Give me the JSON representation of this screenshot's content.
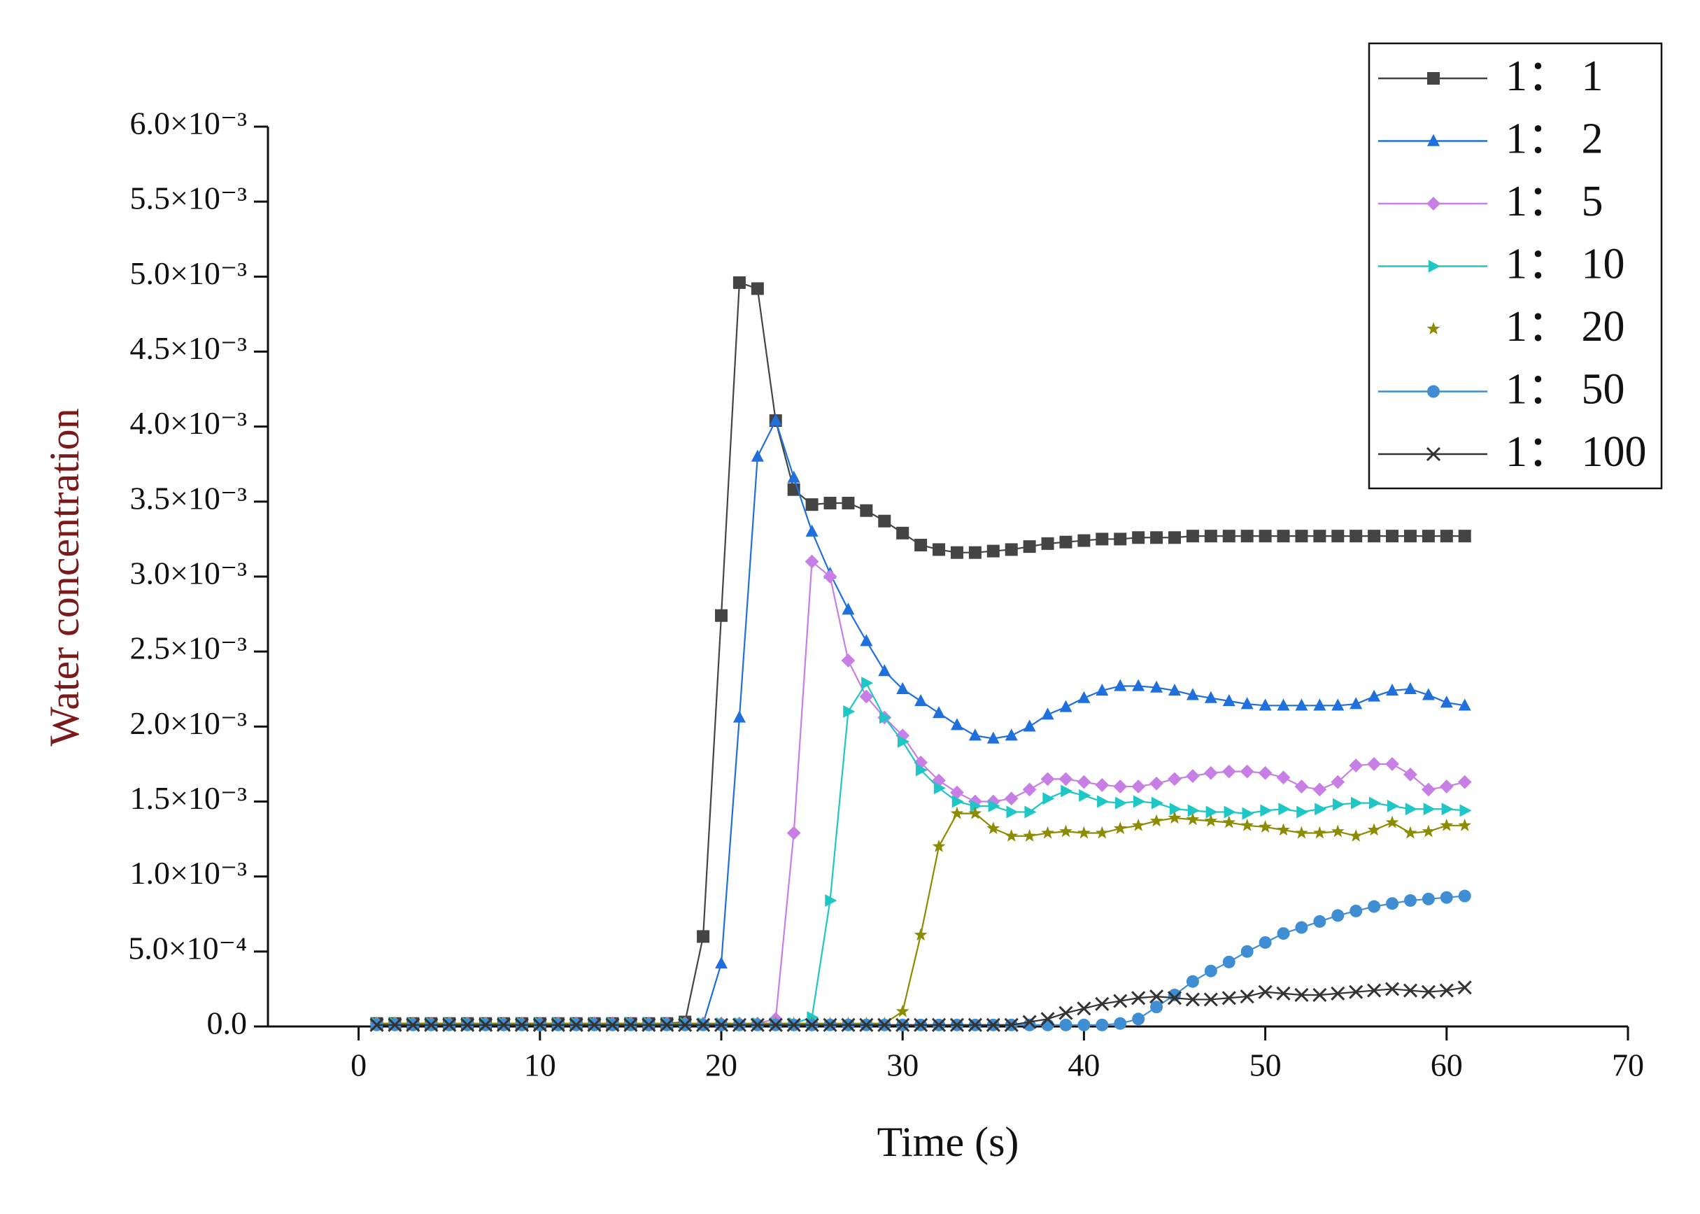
{
  "chart_data": {
    "type": "line",
    "x_label": "Time (s)",
    "y_label": "Water concentration",
    "xlim": [
      -5,
      70
    ],
    "xticks": [
      0,
      10,
      20,
      30,
      40,
      50,
      60,
      70
    ],
    "ylim": [
      0,
      0.006
    ],
    "yticks": [
      {
        "value": 0,
        "label": "0.0"
      },
      {
        "value": 0.0005,
        "label": "5.0×10⁻⁴"
      },
      {
        "value": 0.001,
        "label": "1.0×10⁻³"
      },
      {
        "value": 0.0015,
        "label": "1.5×10⁻³"
      },
      {
        "value": 0.002,
        "label": "2.0×10⁻³"
      },
      {
        "value": 0.0025,
        "label": "2.5×10⁻³"
      },
      {
        "value": 0.003,
        "label": "3.0×10⁻³"
      },
      {
        "value": 0.0035,
        "label": "3.5×10⁻³"
      },
      {
        "value": 0.004,
        "label": "4.0×10⁻³"
      },
      {
        "value": 0.0045,
        "label": "4.5×10⁻³"
      },
      {
        "value": 0.005,
        "label": "5.0×10⁻³"
      },
      {
        "value": 0.0055,
        "label": "5.5×10⁻³"
      },
      {
        "value": 0.006,
        "label": "6.0×10⁻³"
      }
    ],
    "legend": "upper right",
    "x": [
      1,
      2,
      3,
      4,
      5,
      6,
      7,
      8,
      9,
      10,
      11,
      12,
      13,
      14,
      15,
      16,
      17,
      18,
      19,
      20,
      21,
      22,
      23,
      24,
      25,
      26,
      27,
      28,
      29,
      30,
      31,
      32,
      33,
      34,
      35,
      36,
      37,
      38,
      39,
      40,
      41,
      42,
      43,
      44,
      45,
      46,
      47,
      48,
      49,
      50,
      51,
      52,
      53,
      54,
      55,
      56,
      57,
      58,
      59,
      60,
      61
    ],
    "series": [
      {
        "name": "1： 1",
        "color": "#444444",
        "marker": "square",
        "values": [
          2e-05,
          2e-05,
          2e-05,
          2e-05,
          2e-05,
          2e-05,
          2e-05,
          2e-05,
          2e-05,
          2e-05,
          2e-05,
          2e-05,
          2e-05,
          2e-05,
          2e-05,
          2e-05,
          2e-05,
          3e-05,
          0.0006,
          0.00274,
          0.00496,
          0.00492,
          0.00404,
          0.00358,
          0.00348,
          0.00349,
          0.00349,
          0.00344,
          0.00337,
          0.00329,
          0.00321,
          0.00318,
          0.00316,
          0.00316,
          0.00317,
          0.00318,
          0.0032,
          0.00322,
          0.00323,
          0.00324,
          0.00325,
          0.00325,
          0.00326,
          0.00326,
          0.00326,
          0.00327,
          0.00327,
          0.00327,
          0.00327,
          0.00327,
          0.00327,
          0.00327,
          0.00327,
          0.00327,
          0.00327,
          0.00327,
          0.00327,
          0.00327,
          0.00327,
          0.00327,
          0.00327
        ]
      },
      {
        "name": "1： 2",
        "color": "#1f6fdc",
        "marker": "triangle",
        "values": [
          2e-05,
          2e-05,
          2e-05,
          2e-05,
          2e-05,
          2e-05,
          2e-05,
          2e-05,
          2e-05,
          2e-05,
          2e-05,
          2e-05,
          2e-05,
          2e-05,
          2e-05,
          2e-05,
          2e-05,
          2e-05,
          2e-05,
          0.00042,
          0.00206,
          0.0038,
          0.00404,
          0.00366,
          0.0033,
          0.00302,
          0.00278,
          0.00257,
          0.00237,
          0.00225,
          0.00217,
          0.00209,
          0.00201,
          0.00194,
          0.00192,
          0.00194,
          0.002,
          0.00208,
          0.00213,
          0.00219,
          0.00224,
          0.00227,
          0.00227,
          0.00226,
          0.00224,
          0.00221,
          0.00219,
          0.00217,
          0.00215,
          0.00214,
          0.00214,
          0.00214,
          0.00214,
          0.00214,
          0.00215,
          0.0022,
          0.00224,
          0.00225,
          0.00221,
          0.00216,
          0.00214
        ]
      },
      {
        "name": "1： 5",
        "color": "#c77fe6",
        "marker": "diamond",
        "values": [
          2e-05,
          2e-05,
          2e-05,
          2e-05,
          2e-05,
          2e-05,
          2e-05,
          2e-05,
          2e-05,
          2e-05,
          2e-05,
          2e-05,
          2e-05,
          2e-05,
          2e-05,
          2e-05,
          2e-05,
          2e-05,
          2e-05,
          2e-05,
          2e-05,
          2e-05,
          5e-05,
          0.00129,
          0.0031,
          0.003,
          0.00244,
          0.0022,
          0.00206,
          0.00194,
          0.00176,
          0.00164,
          0.00156,
          0.0015,
          0.0015,
          0.00152,
          0.00158,
          0.00165,
          0.00165,
          0.00163,
          0.00161,
          0.0016,
          0.0016,
          0.00162,
          0.00165,
          0.00167,
          0.00169,
          0.0017,
          0.0017,
          0.00169,
          0.00166,
          0.0016,
          0.00158,
          0.00163,
          0.00174,
          0.00175,
          0.00175,
          0.00168,
          0.00158,
          0.0016,
          0.00163
        ]
      },
      {
        "name": "1： 10",
        "color": "#1ec6c6",
        "marker": "triangle-right",
        "values": [
          2e-05,
          2e-05,
          2e-05,
          2e-05,
          2e-05,
          2e-05,
          2e-05,
          2e-05,
          2e-05,
          2e-05,
          2e-05,
          2e-05,
          2e-05,
          2e-05,
          2e-05,
          2e-05,
          2e-05,
          2e-05,
          2e-05,
          2e-05,
          2e-05,
          2e-05,
          2e-05,
          2e-05,
          6e-05,
          0.00084,
          0.0021,
          0.00229,
          0.00206,
          0.0019,
          0.00171,
          0.00159,
          0.0015,
          0.00147,
          0.00147,
          0.00143,
          0.00143,
          0.00152,
          0.00157,
          0.00154,
          0.0015,
          0.00149,
          0.0015,
          0.00149,
          0.00145,
          0.00144,
          0.00143,
          0.00143,
          0.00142,
          0.00144,
          0.00145,
          0.00143,
          0.00145,
          0.00148,
          0.00149,
          0.00149,
          0.00147,
          0.00145,
          0.00145,
          0.00145,
          0.00144
        ]
      },
      {
        "name": "1： 20",
        "color": "#8c8c00",
        "marker": "star",
        "values": [
          2e-05,
          2e-05,
          2e-05,
          2e-05,
          2e-05,
          2e-05,
          2e-05,
          2e-05,
          2e-05,
          2e-05,
          2e-05,
          2e-05,
          2e-05,
          2e-05,
          2e-05,
          2e-05,
          2e-05,
          2e-05,
          2e-05,
          2e-05,
          2e-05,
          2e-05,
          2e-05,
          2e-05,
          2e-05,
          2e-05,
          2e-05,
          2e-05,
          2e-05,
          0.0001,
          0.00061,
          0.0012,
          0.00142,
          0.00142,
          0.00132,
          0.00127,
          0.00127,
          0.00129,
          0.0013,
          0.00129,
          0.00129,
          0.00132,
          0.00134,
          0.00137,
          0.00139,
          0.00138,
          0.00137,
          0.00136,
          0.00134,
          0.00133,
          0.00131,
          0.00129,
          0.00129,
          0.0013,
          0.00127,
          0.00131,
          0.00136,
          0.00129,
          0.0013,
          0.00134,
          0.00134
        ]
      },
      {
        "name": "1： 50",
        "color": "#3f8ed4",
        "marker": "circle",
        "values": [
          1e-05,
          1e-05,
          1e-05,
          1e-05,
          1e-05,
          1e-05,
          1e-05,
          1e-05,
          1e-05,
          1e-05,
          1e-05,
          1e-05,
          1e-05,
          1e-05,
          1e-05,
          1e-05,
          1e-05,
          1e-05,
          1e-05,
          1e-05,
          1e-05,
          1e-05,
          1e-05,
          1e-05,
          1e-05,
          1e-05,
          1e-05,
          1e-05,
          1e-05,
          1e-05,
          1e-05,
          1e-05,
          1e-05,
          1e-05,
          1e-05,
          1e-05,
          1e-05,
          1e-05,
          1e-05,
          1e-05,
          1e-05,
          2e-05,
          5e-05,
          0.00013,
          0.00021,
          0.0003,
          0.00037,
          0.00043,
          0.0005,
          0.00056,
          0.00062,
          0.00066,
          0.0007,
          0.00074,
          0.00077,
          0.0008,
          0.00082,
          0.00084,
          0.00085,
          0.00086,
          0.00087
        ]
      },
      {
        "name": "1： 100",
        "color": "#333333",
        "marker": "x",
        "values": [
          1e-05,
          1e-05,
          1e-05,
          1e-05,
          1e-05,
          1e-05,
          1e-05,
          1e-05,
          1e-05,
          1e-05,
          1e-05,
          1e-05,
          1e-05,
          1e-05,
          1e-05,
          1e-05,
          1e-05,
          1e-05,
          1e-05,
          1e-05,
          1e-05,
          1e-05,
          1e-05,
          1e-05,
          1e-05,
          1e-05,
          1e-05,
          1e-05,
          1e-05,
          1e-05,
          1e-05,
          1e-05,
          1e-05,
          1e-05,
          1e-05,
          1e-05,
          3e-05,
          5e-05,
          9e-05,
          0.00012,
          0.00015,
          0.00017,
          0.00019,
          0.0002,
          0.00019,
          0.00018,
          0.00018,
          0.00019,
          0.0002,
          0.00023,
          0.00022,
          0.00021,
          0.00021,
          0.00022,
          0.00023,
          0.00024,
          0.00025,
          0.00024,
          0.00023,
          0.00024,
          0.00026
        ]
      }
    ]
  }
}
